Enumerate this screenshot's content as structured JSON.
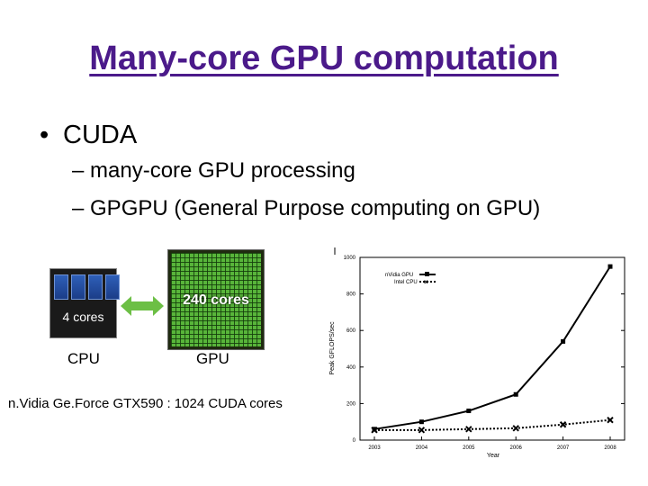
{
  "slide": {
    "title": "Many-core GPU computation",
    "bullet": "CUDA",
    "subbullets": [
      "– many-core GPU processing",
      "– GPGPU (General Purpose computing on GPU)"
    ]
  },
  "figure": {
    "cpu_chip_label": "4 cores",
    "gpu_chip_label": "240 cores",
    "cpu_caption": "CPU",
    "gpu_caption": "GPU",
    "note": "n.Vidia Ge.Force GTX590 : 1024 CUDA cores",
    "colors": {
      "title": "#4b1a8a",
      "cpu_core": "#2e5fb8",
      "gpu_grid": "#58b53a",
      "arrow": "#6cbf45"
    }
  },
  "chart_data": {
    "type": "line",
    "title": "",
    "xlabel": "Year",
    "ylabel": "Peak GFLOPS/sec",
    "x": [
      "2003",
      "2004",
      "2005",
      "2006",
      "2007",
      "2008"
    ],
    "ylim": [
      0,
      1000
    ],
    "yticks": [
      0,
      200,
      400,
      600,
      800,
      1000
    ],
    "legend_position": "top-left",
    "series": [
      {
        "name": "nVidia GPU",
        "values": [
          60,
          100,
          160,
          250,
          540,
          950
        ],
        "marker": "square",
        "style": "solid"
      },
      {
        "name": "Intel CPU",
        "values": [
          55,
          55,
          60,
          65,
          85,
          110
        ],
        "marker": "x",
        "style": "dotted"
      }
    ]
  }
}
